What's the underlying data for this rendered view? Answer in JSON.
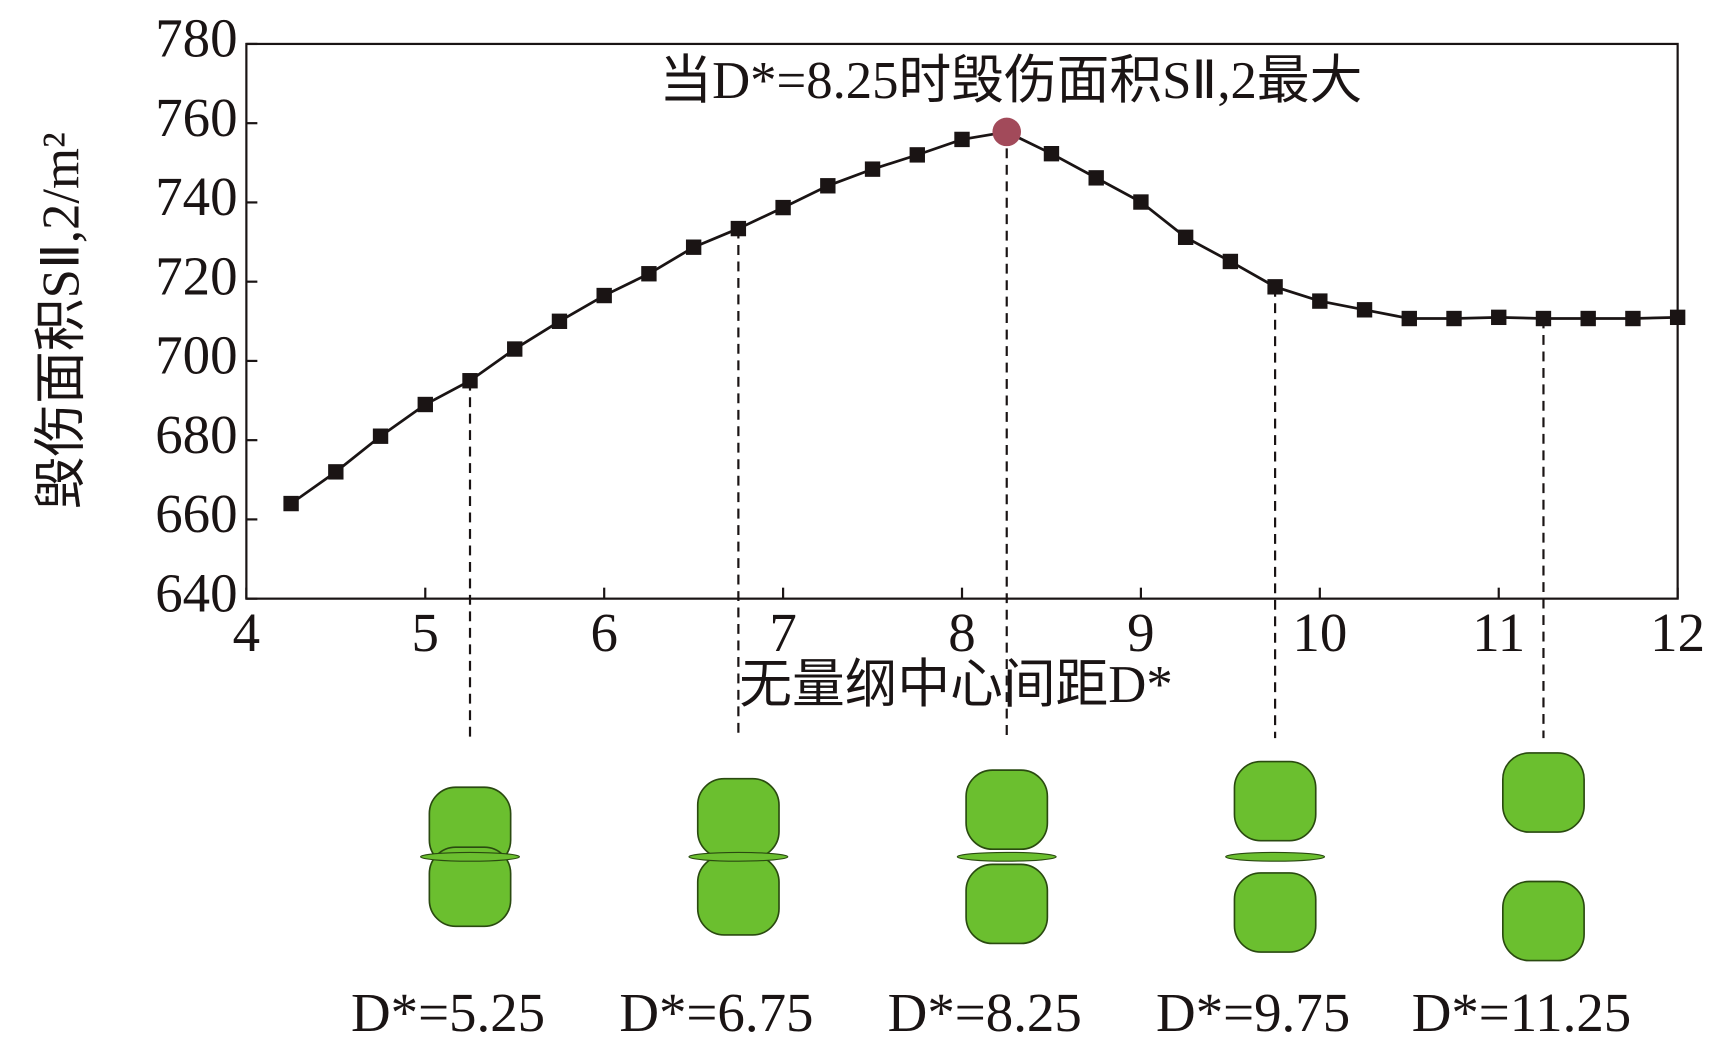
{
  "chart_data": {
    "type": "line",
    "title": "当D*=8.25时毁伤面积SⅡ,2最大",
    "x_label": "无量纲中心间距D*",
    "y_label": "毁伤面积SⅡ,2/m²",
    "x": [
      4.25,
      4.5,
      4.75,
      5,
      5.25,
      5.5,
      5.75,
      6,
      6.25,
      6.5,
      6.75,
      7,
      7.25,
      7.5,
      7.75,
      8,
      8.25,
      8.5,
      8.75,
      9,
      9.25,
      9.5,
      9.75,
      10,
      10.25,
      10.5,
      10.75,
      11,
      11.25,
      11.5,
      11.75,
      12
    ],
    "series": [
      {
        "color": "#1a1414",
        "values": [
          664,
          672,
          681,
          689,
          695,
          703,
          710,
          716.5,
          722,
          728.7,
          733.4,
          738.7,
          744.2,
          748.4,
          752,
          755.9,
          757.8,
          752.3,
          746.2,
          740.1,
          731.2,
          725.1,
          718.7,
          715.1,
          712.9,
          710.7,
          710.7,
          711,
          710.7,
          710.7,
          710.7,
          711
        ]
      }
    ],
    "highlight_x": 8.25,
    "highlight_color": "#a24a5a",
    "xlim": [
      4,
      12
    ],
    "xticks": [
      4,
      5,
      6,
      7,
      8,
      9,
      10,
      11,
      12
    ],
    "ylim": [
      640,
      780
    ],
    "yticks": [
      640,
      660,
      680,
      700,
      720,
      740,
      760,
      780
    ],
    "panel_x": [
      5.25,
      6.75,
      8.25,
      9.75,
      11.25
    ],
    "panel_labels": [
      "D*=5.25",
      "D*=6.75",
      "D*=8.25",
      "D*=9.75",
      "D*=11.25"
    ],
    "panel_color": "#6bbf2f"
  }
}
